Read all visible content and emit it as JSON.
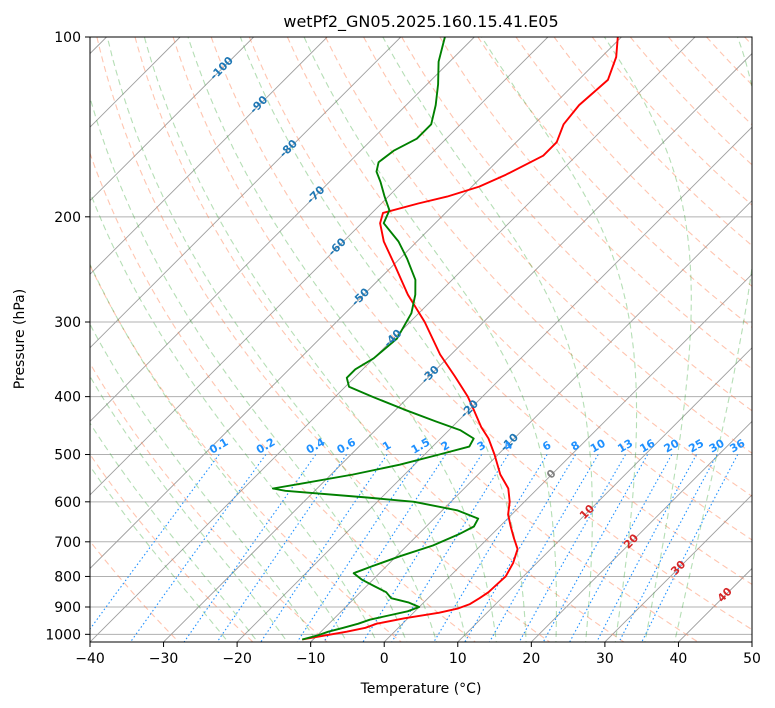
{
  "chart_data": {
    "type": "line",
    "subtype": "skew-t log-p diagram",
    "title": "wetPf2_GN05.2025.160.15.41.E05",
    "xlabel": "Temperature (°C)",
    "ylabel": "Pressure (hPa)",
    "xlim": [
      -40,
      50
    ],
    "ylim": [
      1030,
      100
    ],
    "y_scale": "log",
    "x_ticks": [
      -40,
      -30,
      -20,
      -10,
      0,
      10,
      20,
      30,
      40,
      50
    ],
    "x_tick_labels": [
      "−40",
      "−30",
      "−20",
      "−10",
      "0",
      "10",
      "20",
      "30",
      "40",
      "50"
    ],
    "y_ticks": [
      100,
      200,
      300,
      400,
      500,
      600,
      700,
      800,
      900,
      1000
    ],
    "y_tick_labels": [
      "100",
      "200",
      "300",
      "400",
      "500",
      "600",
      "700",
      "800",
      "900",
      "1000"
    ],
    "grid": true,
    "colors": {
      "temperature": "#ff0000",
      "dewpoint": "#008000",
      "isotherm": "#808080",
      "dry_adiabat": "#ff7f50",
      "moist_adiabat": "#2ca02c",
      "mixing_ratio": "#1e90ff",
      "isotherm_label_cold": "#1f77b4",
      "isotherm_label_warm": "#d62728",
      "isotherm_label_zero": "#808080"
    },
    "isotherm_labels": [
      {
        "value": -100,
        "text": "-100",
        "p": 113
      },
      {
        "value": -90,
        "text": "-90",
        "p": 130
      },
      {
        "value": -80,
        "text": "-80",
        "p": 154
      },
      {
        "value": -70,
        "text": "-70",
        "p": 184
      },
      {
        "value": -60,
        "text": "-60",
        "p": 225
      },
      {
        "value": -50,
        "text": "-50",
        "p": 273
      },
      {
        "value": -40,
        "text": "-40",
        "p": 320
      },
      {
        "value": -30,
        "text": "-30",
        "p": 368
      },
      {
        "value": -20,
        "text": "-20",
        "p": 420
      },
      {
        "value": -10,
        "text": "-10",
        "p": 478
      },
      {
        "value": 0,
        "text": "0",
        "p": 540
      },
      {
        "value": 10,
        "text": "10",
        "p": 625
      },
      {
        "value": 20,
        "text": "20",
        "p": 700
      },
      {
        "value": 30,
        "text": "30",
        "p": 775
      },
      {
        "value": 40,
        "text": "40",
        "p": 860
      }
    ],
    "mixing_ratio_labels": [
      "0.1",
      "0.2",
      "0.4",
      "0.6",
      "1",
      "1.5",
      "2",
      "3",
      "4",
      "6",
      "8",
      "10",
      "13",
      "16",
      "20",
      "25",
      "30",
      "36"
    ],
    "mixing_ratio_values": [
      0.1,
      0.2,
      0.4,
      0.6,
      1,
      1.5,
      2,
      3,
      4,
      6,
      8,
      10,
      13,
      16,
      20,
      25,
      30,
      36
    ],
    "mixing_ratio_label_pressure": 500,
    "series": [
      {
        "key": "temperature",
        "points": [
          [
            1020,
            -11.5
          ],
          [
            1005,
            -9.0
          ],
          [
            990,
            -6.5
          ],
          [
            975,
            -4.5
          ],
          [
            960,
            -3.5
          ],
          [
            940,
            -0.5
          ],
          [
            920,
            3.5
          ],
          [
            905,
            5.5
          ],
          [
            890,
            6.5
          ],
          [
            870,
            7.0
          ],
          [
            850,
            7.4
          ],
          [
            820,
            7.5
          ],
          [
            800,
            7.6
          ],
          [
            760,
            6.8
          ],
          [
            720,
            5.5
          ],
          [
            690,
            3.5
          ],
          [
            660,
            1.5
          ],
          [
            630,
            -0.5
          ],
          [
            600,
            -2.0
          ],
          [
            570,
            -4.0
          ],
          [
            540,
            -7.0
          ],
          [
            500,
            -10.5
          ],
          [
            470,
            -13.5
          ],
          [
            450,
            -16.0
          ],
          [
            420,
            -19.5
          ],
          [
            400,
            -22.0
          ],
          [
            370,
            -26.5
          ],
          [
            340,
            -31.5
          ],
          [
            300,
            -38.0
          ],
          [
            270,
            -44.0
          ],
          [
            240,
            -50.0
          ],
          [
            220,
            -54.5
          ],
          [
            205,
            -57.5
          ],
          [
            197,
            -58.5
          ],
          [
            190,
            -55.0
          ],
          [
            185,
            -52.0
          ],
          [
            178,
            -49.0
          ],
          [
            170,
            -47.0
          ],
          [
            158,
            -44.5
          ],
          [
            150,
            -44.5
          ],
          [
            140,
            -46.0
          ],
          [
            130,
            -46.5
          ],
          [
            118,
            -46.0
          ],
          [
            108,
            -48.0
          ],
          [
            100,
            -50.5
          ]
        ]
      },
      {
        "key": "dewpoint",
        "points": [
          [
            1020,
            -11.5
          ],
          [
            1005,
            -10.0
          ],
          [
            990,
            -9.0
          ],
          [
            975,
            -7.5
          ],
          [
            960,
            -6.0
          ],
          [
            945,
            -5.0
          ],
          [
            930,
            -3.0
          ],
          [
            915,
            -1.0
          ],
          [
            900,
            0.0
          ],
          [
            885,
            -2.0
          ],
          [
            870,
            -5.0
          ],
          [
            850,
            -6.5
          ],
          [
            830,
            -9.0
          ],
          [
            810,
            -11.5
          ],
          [
            790,
            -13.5
          ],
          [
            770,
            -12.0
          ],
          [
            740,
            -9.5
          ],
          [
            710,
            -6.5
          ],
          [
            680,
            -4.5
          ],
          [
            660,
            -3.5
          ],
          [
            640,
            -4.0
          ],
          [
            620,
            -8.0
          ],
          [
            600,
            -15.0
          ],
          [
            590,
            -22.0
          ],
          [
            575,
            -34.0
          ],
          [
            570,
            -36.0
          ],
          [
            560,
            -33.0
          ],
          [
            540,
            -27.0
          ],
          [
            520,
            -22.0
          ],
          [
            500,
            -18.0
          ],
          [
            485,
            -15.0
          ],
          [
            470,
            -15.5
          ],
          [
            455,
            -18.5
          ],
          [
            440,
            -23.0
          ],
          [
            420,
            -29.0
          ],
          [
            400,
            -35.0
          ],
          [
            385,
            -39.5
          ],
          [
            372,
            -41.0
          ],
          [
            360,
            -41.0
          ],
          [
            345,
            -40.0
          ],
          [
            320,
            -39.5
          ],
          [
            290,
            -41.0
          ],
          [
            270,
            -43.0
          ],
          [
            255,
            -45.0
          ],
          [
            235,
            -49.0
          ],
          [
            220,
            -52.5
          ],
          [
            205,
            -57.0
          ],
          [
            195,
            -58.0
          ],
          [
            185,
            -60.5
          ],
          [
            175,
            -63.0
          ],
          [
            168,
            -65.0
          ],
          [
            162,
            -66.0
          ],
          [
            155,
            -65.5
          ],
          [
            148,
            -64.0
          ],
          [
            140,
            -64.0
          ],
          [
            130,
            -66.0
          ],
          [
            120,
            -68.5
          ],
          [
            110,
            -71.5
          ],
          [
            100,
            -74.0
          ]
        ]
      }
    ]
  }
}
